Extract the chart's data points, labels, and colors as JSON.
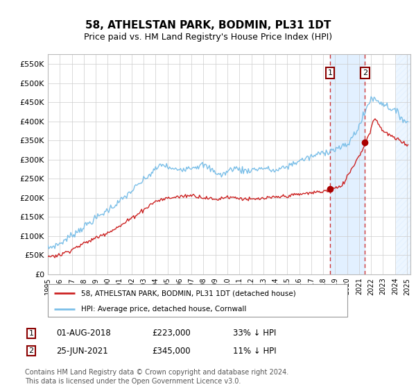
{
  "title": "58, ATHELSTAN PARK, BODMIN, PL31 1DT",
  "subtitle": "Price paid vs. HM Land Registry's House Price Index (HPI)",
  "xlim_start": 1995.0,
  "xlim_end": 2025.3,
  "ylim_min": 0,
  "ylim_max": 575000,
  "yticks": [
    0,
    50000,
    100000,
    150000,
    200000,
    250000,
    300000,
    350000,
    400000,
    450000,
    500000,
    550000
  ],
  "ytick_labels": [
    "£0",
    "£50K",
    "£100K",
    "£150K",
    "£200K",
    "£250K",
    "£300K",
    "£350K",
    "£400K",
    "£450K",
    "£500K",
    "£550K"
  ],
  "transaction1_date": 2018.583,
  "transaction1_price": 223000,
  "transaction2_date": 2021.479,
  "transaction2_price": 345000,
  "transaction1_date_str": "01-AUG-2018",
  "transaction1_hpi": "33% ↓ HPI",
  "transaction2_date_str": "25-JUN-2021",
  "transaction2_hpi": "11% ↓ HPI",
  "hpi_line_color": "#7bbfe8",
  "price_line_color": "#cc2222",
  "marker_color": "#aa0000",
  "shade_color": "#ddeeff",
  "dashed_color": "#cc3333",
  "legend_label1": "58, ATHELSTAN PARK, BODMIN, PL31 1DT (detached house)",
  "legend_label2": "HPI: Average price, detached house, Cornwall",
  "footnote1": "Contains HM Land Registry data © Crown copyright and database right 2024.",
  "footnote2": "This data is licensed under the Open Government Licence v3.0.",
  "background_color": "#ffffff",
  "grid_color": "#cccccc"
}
